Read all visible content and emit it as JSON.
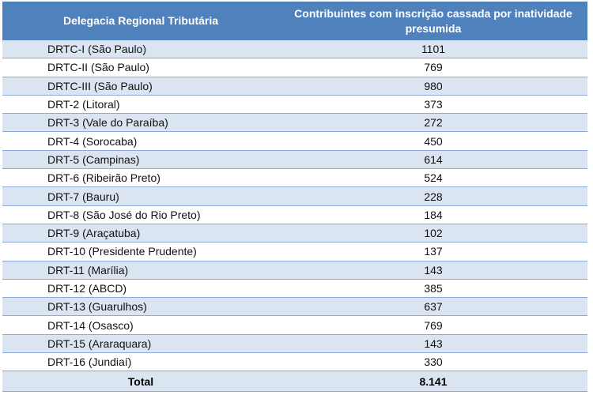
{
  "table": {
    "headers": [
      "Delegacia Regional Tributária",
      "Contribuintes com inscrição cassada por inatividade presumida"
    ],
    "rows": [
      {
        "region": "DRTC-I (São Paulo)",
        "count": "1101"
      },
      {
        "region": "DRTC-II (São Paulo)",
        "count": "769"
      },
      {
        "region": "DRTC-III (São Paulo)",
        "count": "980"
      },
      {
        "region": "DRT-2 (Litoral)",
        "count": "373"
      },
      {
        "region": "DRT-3 (Vale do Paraíba)",
        "count": "272"
      },
      {
        "region": "DRT-4 (Sorocaba)",
        "count": "450"
      },
      {
        "region": "DRT-5 (Campinas)",
        "count": "614"
      },
      {
        "region": "DRT-6 (Ribeirão Preto)",
        "count": "524"
      },
      {
        "region": "DRT-7 (Bauru)",
        "count": "228"
      },
      {
        "region": "DRT-8 (São José do Rio Preto)",
        "count": "184"
      },
      {
        "region": "DRT-9 (Araçatuba)",
        "count": "102"
      },
      {
        "region": "DRT-10 (Presidente Prudente)",
        "count": "137"
      },
      {
        "region": "DRT-11 (Marília)",
        "count": "143"
      },
      {
        "region": "DRT-12 (ABCD)",
        "count": "385"
      },
      {
        "region": "DRT-13 (Guarulhos)",
        "count": "637"
      },
      {
        "region": "DRT-14 (Osasco)",
        "count": "769"
      },
      {
        "region": "DRT-15 (Araraquara)",
        "count": "143"
      },
      {
        "region": "DRT-16 (Jundiaí)",
        "count": "330"
      }
    ],
    "total_label": "Total",
    "total_value": "8.141"
  },
  "colors": {
    "header_bg": "#4f81bd",
    "band_bg": "#dbe5f1",
    "row_border": "#8eaadb"
  }
}
